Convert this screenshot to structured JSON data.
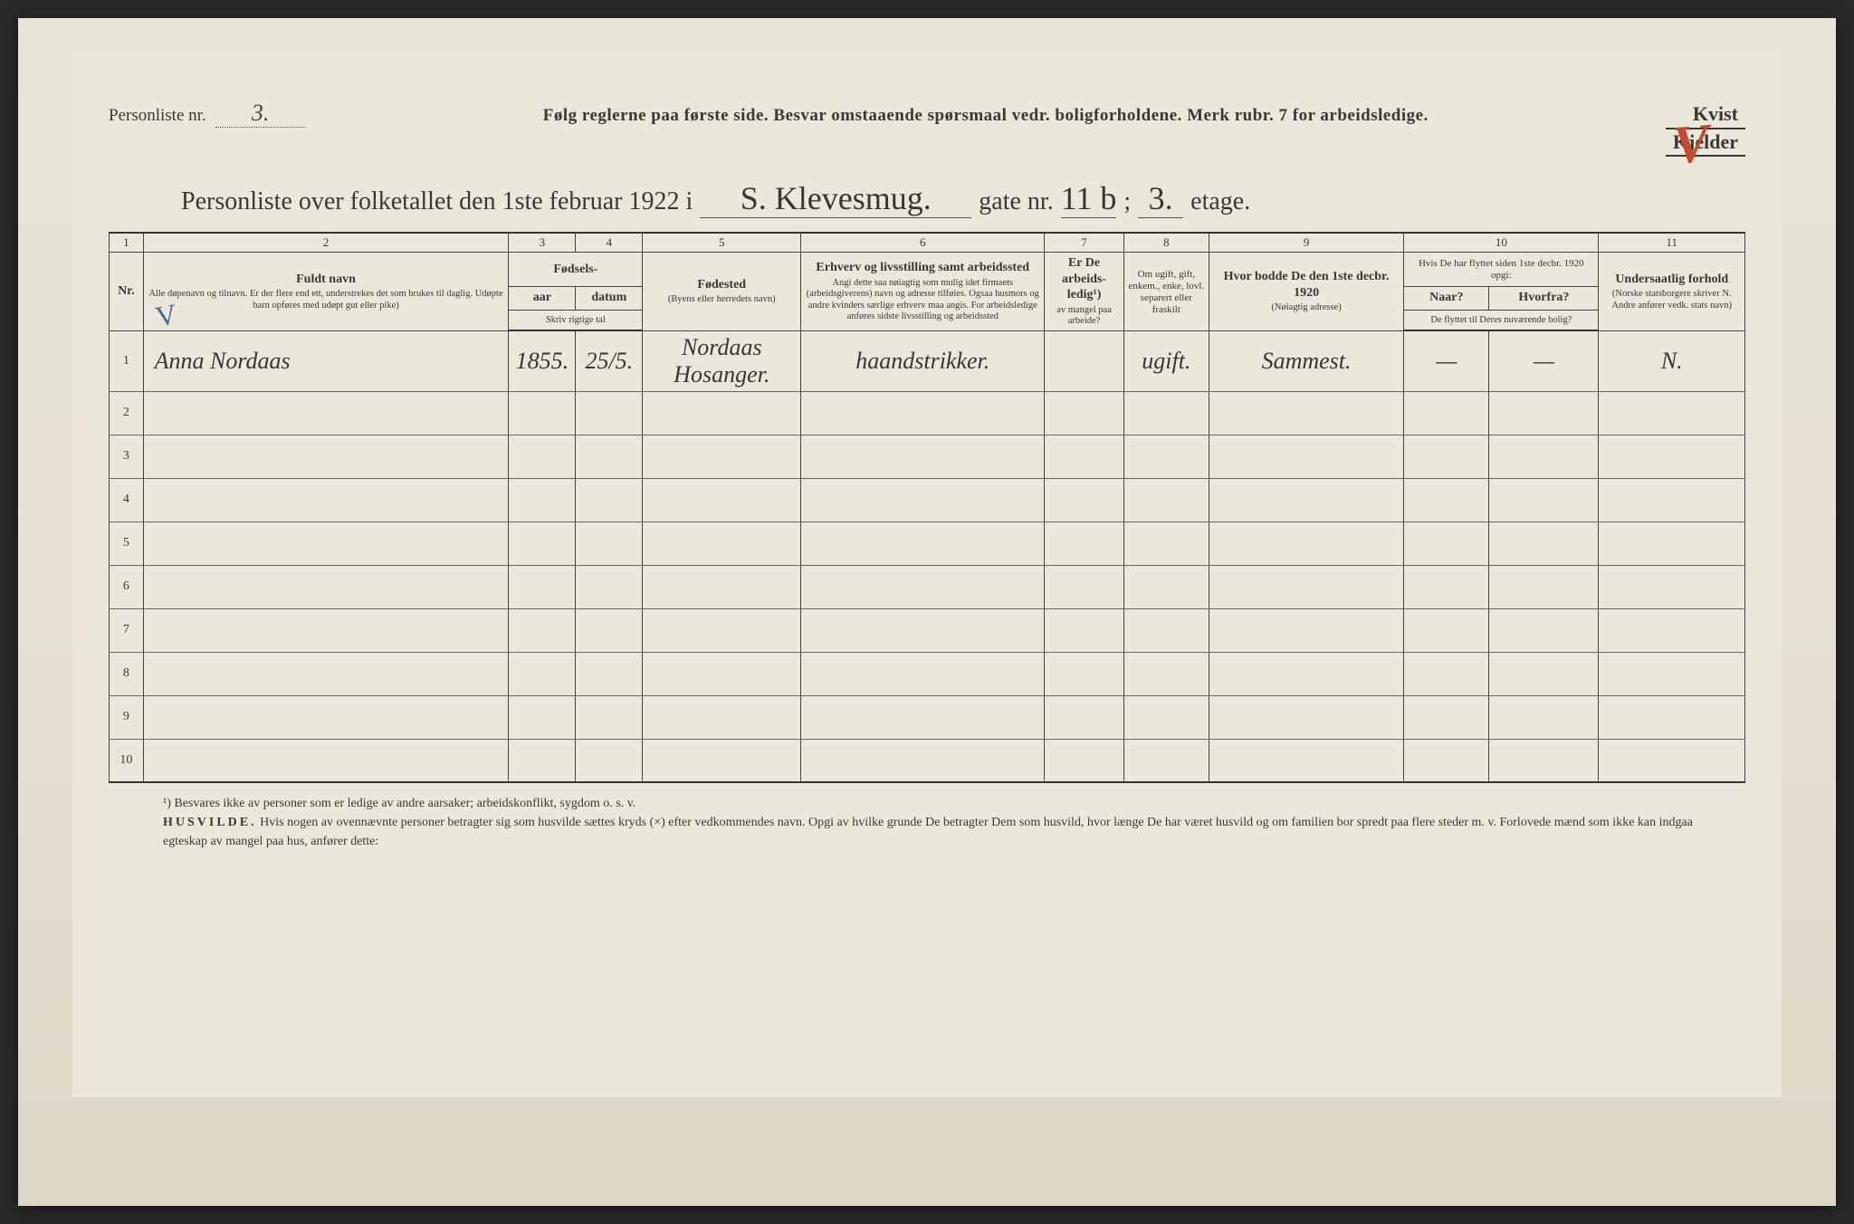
{
  "header": {
    "personliste_label": "Personliste nr.",
    "personliste_value": "3.",
    "instructions": "Følg reglerne paa første side.   Besvar omstaaende spørsmaal vedr. boligforholdene.   Merk rubr. 7 for arbeidsledige.",
    "kvist": "Kvist",
    "kjelder": "Kjelder",
    "red_mark": "V"
  },
  "title": {
    "prefix": "Personliste over folketallet den 1ste februar 1922 i",
    "street": "S. Klevesmug.",
    "gate_label": "gate nr.",
    "gate_value": "11 b",
    "sep": ";",
    "etage_value": "3.",
    "etage_label": "etage."
  },
  "columns": {
    "c1": "1",
    "c2": "2",
    "c3": "3",
    "c4": "4",
    "c5": "5",
    "c6": "6",
    "c7": "7",
    "c8": "8",
    "c9": "9",
    "c10": "10",
    "c11": "11",
    "nr": "Nr.",
    "name_head": "Fuldt navn",
    "name_sub": "Alle døpenavn og tilnavn. Er der flere end ett, understrekes det som brukes til daglig. Udøpte barn opføres med udøpt gut eller pike)",
    "fodsels": "Fødsels-",
    "aar": "aar",
    "datum": "datum",
    "skriv": "Skriv rigtige tal",
    "fodested": "Fødested",
    "fodested_sub": "(Byens eller herredets navn)",
    "erhverv": "Erhverv og livsstilling samt arbeidssted",
    "erhverv_sub": "Angi dette saa nøiagtig som mulig idet firmaets (arbeidsgiverens) navn og adresse tilføies. Ogsaa husmors og andre kvinders særlige erhverv maa angis. For arbeidsledige anføres sidste livsstilling og arbeidssted",
    "arbeidsledig": "Er De arbeids-ledig¹)",
    "arbeidsledig_sub": "av mangel paa arbeide?",
    "ugift": "Om ugift, gift, enkem., enke, lovl. separert eller fraskilt",
    "bodde": "Hvor bodde De den 1ste decbr. 1920",
    "bodde_sub": "(Nøiagtig adresse)",
    "flyttet": "Hvis De har flyttet siden 1ste decbr. 1920 opgi:",
    "naar": "Naar?",
    "hvorfra": "Hvorfra?",
    "flyttet_sub": "De flyttet til Deres nuværende bolig?",
    "undersaatlig": "Undersaatlig forhold",
    "undersaatlig_sub": "(Norske statsborgere skriver N. Andre anfører vedk. stats navn)"
  },
  "rows": [
    {
      "nr": "1",
      "name": "Anna Nordaas",
      "aar": "1855.",
      "datum": "25/5.",
      "fodested": "Nordaas Hosanger.",
      "erhverv": "haandstrikker.",
      "ledig": "",
      "ugift": "ugift.",
      "bodde": "Sammest.",
      "naar": "—",
      "hvorfra": "—",
      "under": "N."
    },
    {
      "nr": "2",
      "name": "",
      "aar": "",
      "datum": "",
      "fodested": "",
      "erhverv": "",
      "ledig": "",
      "ugift": "",
      "bodde": "",
      "naar": "",
      "hvorfra": "",
      "under": ""
    },
    {
      "nr": "3",
      "name": "",
      "aar": "",
      "datum": "",
      "fodested": "",
      "erhverv": "",
      "ledig": "",
      "ugift": "",
      "bodde": "",
      "naar": "",
      "hvorfra": "",
      "under": ""
    },
    {
      "nr": "4",
      "name": "",
      "aar": "",
      "datum": "",
      "fodested": "",
      "erhverv": "",
      "ledig": "",
      "ugift": "",
      "bodde": "",
      "naar": "",
      "hvorfra": "",
      "under": ""
    },
    {
      "nr": "5",
      "name": "",
      "aar": "",
      "datum": "",
      "fodested": "",
      "erhverv": "",
      "ledig": "",
      "ugift": "",
      "bodde": "",
      "naar": "",
      "hvorfra": "",
      "under": ""
    },
    {
      "nr": "6",
      "name": "",
      "aar": "",
      "datum": "",
      "fodested": "",
      "erhverv": "",
      "ledig": "",
      "ugift": "",
      "bodde": "",
      "naar": "",
      "hvorfra": "",
      "under": ""
    },
    {
      "nr": "7",
      "name": "",
      "aar": "",
      "datum": "",
      "fodested": "",
      "erhverv": "",
      "ledig": "",
      "ugift": "",
      "bodde": "",
      "naar": "",
      "hvorfra": "",
      "under": ""
    },
    {
      "nr": "8",
      "name": "",
      "aar": "",
      "datum": "",
      "fodested": "",
      "erhverv": "",
      "ledig": "",
      "ugift": "",
      "bodde": "",
      "naar": "",
      "hvorfra": "",
      "under": ""
    },
    {
      "nr": "9",
      "name": "",
      "aar": "",
      "datum": "",
      "fodested": "",
      "erhverv": "",
      "ledig": "",
      "ugift": "",
      "bodde": "",
      "naar": "",
      "hvorfra": "",
      "under": ""
    },
    {
      "nr": "10",
      "name": "",
      "aar": "",
      "datum": "",
      "fodested": "",
      "erhverv": "",
      "ledig": "",
      "ugift": "",
      "bodde": "",
      "naar": "",
      "hvorfra": "",
      "under": ""
    }
  ],
  "footnotes": {
    "f1": "¹) Besvares ikke av personer som er ledige av andre aarsaker; arbeidskonflikt, sygdom o. s. v.",
    "f2a": "HUSVILDE.",
    "f2b": "Hvis nogen av ovennævnte personer betragter sig som husvilde sættes kryds (×) efter vedkommendes navn. Opgi av hvilke grunde De betragter Dem som husvild, hvor længe De har været husvild og om familien bor spredt paa flere steder m. v. Forlovede mænd som ikke kan indgaa egteskap av mangel paa hus, anfører dette:"
  },
  "blue_mark": "V",
  "styling": {
    "paper_bg": "#ebe7db",
    "ink": "#3a3832",
    "handwriting": "#3a3530",
    "red": "#c84830",
    "blue": "#4a6a9a",
    "border": "#444"
  }
}
